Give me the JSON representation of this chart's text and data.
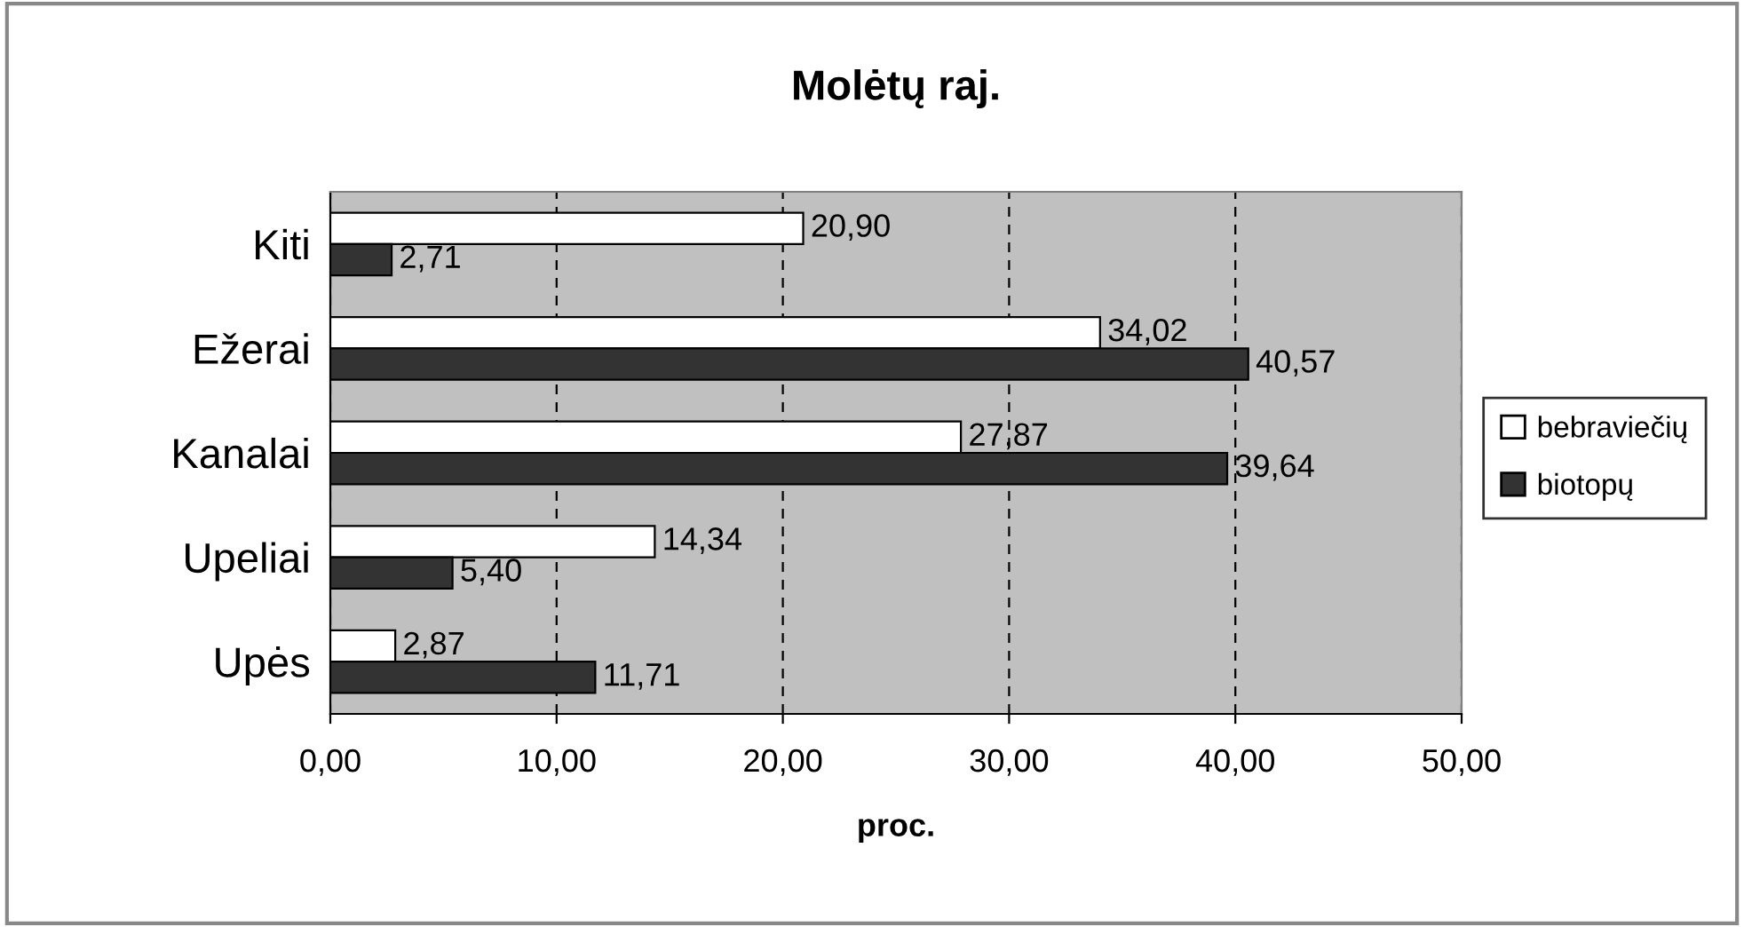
{
  "chart_data": {
    "type": "bar",
    "orientation": "horizontal",
    "title": "Molėtų raj.",
    "xlabel": "proc.",
    "categories": [
      "Kiti",
      "Ežerai",
      "Kanalai",
      "Upeliai",
      "Upės"
    ],
    "series": [
      {
        "name": "bebraviečių",
        "color": "#ffffff",
        "values": [
          20.9,
          34.02,
          27.87,
          14.34,
          2.87
        ],
        "value_labels": [
          "20,90",
          "34,02",
          "27,87",
          "14,34",
          "2,87"
        ]
      },
      {
        "name": "biotopų",
        "color": "#333333",
        "values": [
          2.71,
          40.57,
          39.64,
          5.4,
          11.71
        ],
        "value_labels": [
          "2,71",
          "40,57",
          "39,64",
          "5,40",
          "11,71"
        ]
      }
    ],
    "xlim": [
      0,
      50
    ],
    "xticks": [
      {
        "value": 0,
        "label": "0,00"
      },
      {
        "value": 10,
        "label": "10,00"
      },
      {
        "value": 20,
        "label": "20,00"
      },
      {
        "value": 30,
        "label": "30,00"
      },
      {
        "value": 40,
        "label": "40,00"
      },
      {
        "value": 50,
        "label": "50,00"
      }
    ],
    "grid": "x",
    "legend": "right"
  }
}
